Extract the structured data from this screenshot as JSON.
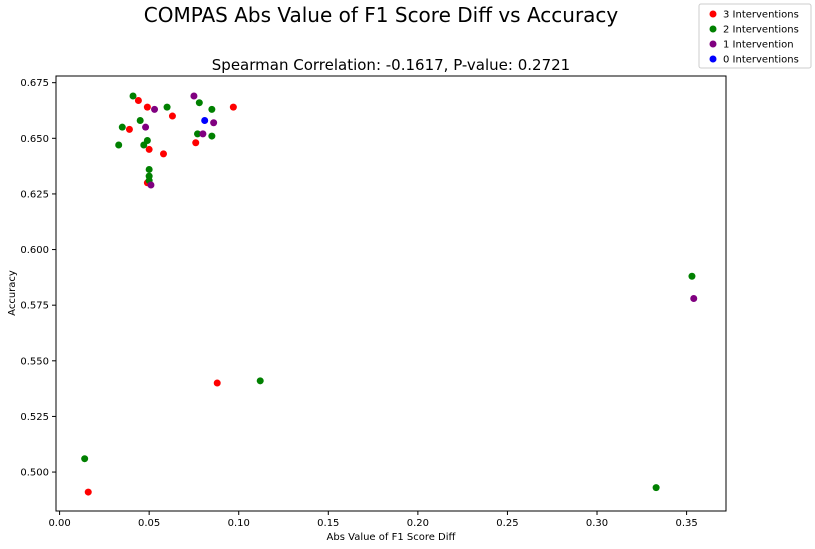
{
  "chart_data": {
    "type": "scatter",
    "title": "COMPAS Abs Value of F1 Score Diff vs Accuracy",
    "subtitle": "Spearman Correlation: -0.1617, P-value: 0.2721",
    "xlabel": "Abs Value of F1 Score Diff",
    "ylabel": "Accuracy",
    "xlim": [
      -0.002,
      0.372
    ],
    "ylim": [
      0.4825,
      0.678
    ],
    "xticks": [
      "0.00",
      "0.05",
      "0.10",
      "0.15",
      "0.20",
      "0.25",
      "0.30",
      "0.35"
    ],
    "xtick_values": [
      0.0,
      0.05,
      0.1,
      0.15,
      0.2,
      0.25,
      0.3,
      0.35
    ],
    "yticks": [
      "0.500",
      "0.525",
      "0.550",
      "0.575",
      "0.600",
      "0.625",
      "0.650",
      "0.675"
    ],
    "ytick_values": [
      0.5,
      0.525,
      0.55,
      0.575,
      0.6,
      0.625,
      0.65,
      0.675
    ],
    "grid": false,
    "legend_position": "top-right",
    "series": [
      {
        "name": "3 Interventions",
        "color": "#ff0000",
        "points": [
          [
            0.044,
            0.667
          ],
          [
            0.049,
            0.664
          ],
          [
            0.039,
            0.654
          ],
          [
            0.063,
            0.66
          ],
          [
            0.097,
            0.664
          ],
          [
            0.05,
            0.645
          ],
          [
            0.058,
            0.643
          ],
          [
            0.076,
            0.648
          ],
          [
            0.049,
            0.63
          ],
          [
            0.088,
            0.54
          ],
          [
            0.016,
            0.491
          ]
        ]
      },
      {
        "name": "2 Interventions",
        "color": "#008000",
        "points": [
          [
            0.041,
            0.669
          ],
          [
            0.06,
            0.664
          ],
          [
            0.078,
            0.666
          ],
          [
            0.085,
            0.663
          ],
          [
            0.045,
            0.658
          ],
          [
            0.035,
            0.655
          ],
          [
            0.033,
            0.647
          ],
          [
            0.047,
            0.647
          ],
          [
            0.049,
            0.649
          ],
          [
            0.077,
            0.652
          ],
          [
            0.085,
            0.651
          ],
          [
            0.05,
            0.636
          ],
          [
            0.05,
            0.633
          ],
          [
            0.05,
            0.631
          ],
          [
            0.353,
            0.588
          ],
          [
            0.112,
            0.541
          ],
          [
            0.014,
            0.506
          ],
          [
            0.333,
            0.493
          ]
        ]
      },
      {
        "name": "1 Intervention",
        "color": "#800080",
        "points": [
          [
            0.075,
            0.669
          ],
          [
            0.053,
            0.663
          ],
          [
            0.086,
            0.657
          ],
          [
            0.048,
            0.655
          ],
          [
            0.08,
            0.652
          ],
          [
            0.051,
            0.629
          ],
          [
            0.354,
            0.578
          ]
        ]
      },
      {
        "name": "0 Interventions",
        "color": "#0000ff",
        "points": [
          [
            0.081,
            0.658
          ]
        ]
      }
    ]
  }
}
